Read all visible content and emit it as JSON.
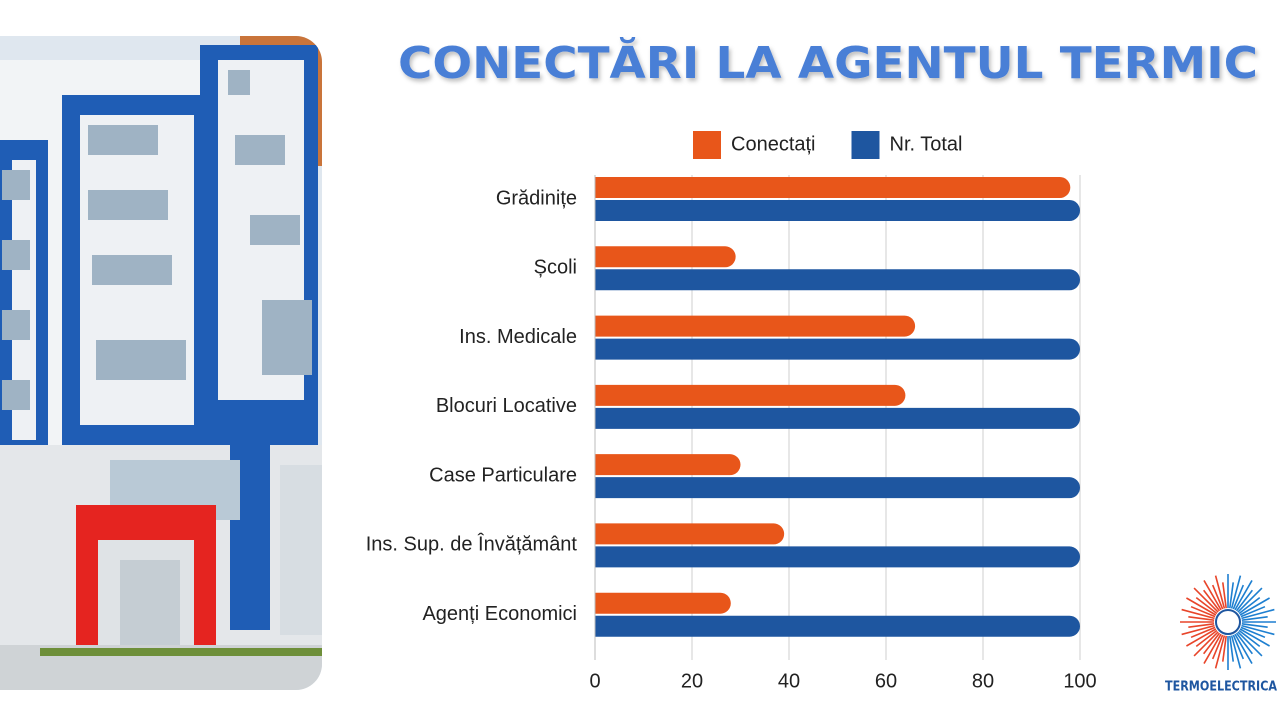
{
  "chart_data": {
    "type": "hbar",
    "title": "CONECTĂRI LA AGENTUL TERMIC",
    "categories": [
      "Grădinițe",
      "Școli",
      "Ins. Medicale",
      "Blocuri Locative",
      "Case Particulare",
      "Ins. Sup. de Învățământ",
      "Agenți Economici"
    ],
    "series": [
      {
        "name": "Conectați",
        "color": "#e8561a",
        "values": [
          98,
          29,
          66,
          64,
          30,
          39,
          28
        ]
      },
      {
        "name": "Nr. Total",
        "color": "#1e56a0",
        "values": [
          100,
          100,
          100,
          100,
          100,
          100,
          100
        ]
      }
    ],
    "xlim": [
      0,
      100
    ],
    "xticks": [
      0,
      20,
      40,
      60,
      80,
      100
    ],
    "grid": true,
    "legend": "top"
  },
  "logo": {
    "text": "TERMOELECTRICA"
  }
}
